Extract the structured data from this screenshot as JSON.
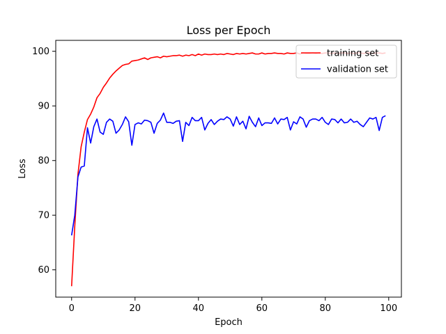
{
  "chart_data": {
    "type": "line",
    "title": "Loss per Epoch",
    "xlabel": "Epoch",
    "ylabel": "Loss",
    "xlim": [
      -5,
      104
    ],
    "ylim": [
      55,
      102
    ],
    "xticks": [
      0,
      20,
      40,
      60,
      80,
      100
    ],
    "yticks": [
      60,
      70,
      80,
      90,
      100
    ],
    "grid": false,
    "legend_position": "top-right",
    "series": [
      {
        "name": "training set",
        "color": "#ff0000",
        "x": [
          0,
          1,
          2,
          3,
          4,
          5,
          6,
          7,
          8,
          9,
          10,
          11,
          12,
          13,
          14,
          15,
          16,
          17,
          18,
          19,
          20,
          21,
          22,
          23,
          24,
          25,
          26,
          27,
          28,
          29,
          30,
          31,
          32,
          33,
          34,
          35,
          36,
          37,
          38,
          39,
          40,
          41,
          42,
          43,
          44,
          45,
          46,
          47,
          48,
          49,
          50,
          51,
          52,
          53,
          54,
          55,
          56,
          57,
          58,
          59,
          60,
          61,
          62,
          63,
          64,
          65,
          66,
          67,
          68,
          69,
          70,
          71,
          72,
          73,
          74,
          75,
          76,
          77,
          78,
          79,
          80,
          81,
          82,
          83,
          84,
          85,
          86,
          87,
          88,
          89,
          90,
          91,
          92,
          93,
          94,
          95,
          96,
          97,
          98,
          99
        ],
        "values": [
          57.0,
          68.0,
          77.5,
          82.5,
          85.2,
          87.5,
          88.5,
          89.8,
          91.5,
          92.3,
          93.4,
          94.2,
          95.1,
          95.8,
          96.4,
          96.9,
          97.4,
          97.6,
          97.7,
          98.2,
          98.3,
          98.4,
          98.6,
          98.8,
          98.5,
          98.8,
          98.9,
          99.0,
          98.8,
          99.1,
          99.0,
          99.1,
          99.2,
          99.2,
          99.3,
          99.1,
          99.3,
          99.2,
          99.4,
          99.2,
          99.5,
          99.3,
          99.5,
          99.4,
          99.4,
          99.5,
          99.4,
          99.5,
          99.4,
          99.6,
          99.5,
          99.4,
          99.6,
          99.5,
          99.6,
          99.5,
          99.6,
          99.7,
          99.5,
          99.5,
          99.7,
          99.5,
          99.6,
          99.6,
          99.7,
          99.6,
          99.6,
          99.5,
          99.7,
          99.6,
          99.6,
          99.7,
          99.5,
          99.7,
          99.6,
          99.6,
          99.7,
          99.6,
          99.7,
          99.6,
          99.7,
          99.7,
          99.6,
          99.7,
          99.6,
          99.7,
          99.7,
          99.6,
          99.7,
          99.6,
          99.7,
          99.7,
          99.6,
          99.7,
          99.7,
          99.6,
          99.7,
          99.7,
          99.6,
          99.7
        ]
      },
      {
        "name": "validation set",
        "color": "#0000ff",
        "x": [
          0,
          1,
          2,
          3,
          4,
          5,
          6,
          7,
          8,
          9,
          10,
          11,
          12,
          13,
          14,
          15,
          16,
          17,
          18,
          19,
          20,
          21,
          22,
          23,
          24,
          25,
          26,
          27,
          28,
          29,
          30,
          31,
          32,
          33,
          34,
          35,
          36,
          37,
          38,
          39,
          40,
          41,
          42,
          43,
          44,
          45,
          46,
          47,
          48,
          49,
          50,
          51,
          52,
          53,
          54,
          55,
          56,
          57,
          58,
          59,
          60,
          61,
          62,
          63,
          64,
          65,
          66,
          67,
          68,
          69,
          70,
          71,
          72,
          73,
          74,
          75,
          76,
          77,
          78,
          79,
          80,
          81,
          82,
          83,
          84,
          85,
          86,
          87,
          88,
          89,
          90,
          91,
          92,
          93,
          94,
          95,
          96,
          97,
          98,
          99
        ],
        "values": [
          66.3,
          70.0,
          77.0,
          78.8,
          79.0,
          86.0,
          83.2,
          86.2,
          87.6,
          85.2,
          84.8,
          87.0,
          87.6,
          87.2,
          85.0,
          85.6,
          86.6,
          88.0,
          87.1,
          82.8,
          86.6,
          86.9,
          86.7,
          87.4,
          87.3,
          87.0,
          85.0,
          86.8,
          87.4,
          88.7,
          87.0,
          87.0,
          86.8,
          87.2,
          87.3,
          83.5,
          87.0,
          86.4,
          87.9,
          87.3,
          87.3,
          87.9,
          85.6,
          86.8,
          87.5,
          86.6,
          87.2,
          87.6,
          87.5,
          88.0,
          87.6,
          86.3,
          88.0,
          86.6,
          87.2,
          85.8,
          88.1,
          87.0,
          86.2,
          87.8,
          86.4,
          86.9,
          86.9,
          86.8,
          87.8,
          86.7,
          87.6,
          87.5,
          87.9,
          85.6,
          87.1,
          86.7,
          88.0,
          87.6,
          86.1,
          87.3,
          87.6,
          87.6,
          87.3,
          87.9,
          87.0,
          86.6,
          87.6,
          87.5,
          86.9,
          87.6,
          86.9,
          87.0,
          87.6,
          87.0,
          87.2,
          86.6,
          86.2,
          87.0,
          87.8,
          87.6,
          87.9,
          85.5,
          87.9,
          88.2
        ]
      }
    ]
  }
}
